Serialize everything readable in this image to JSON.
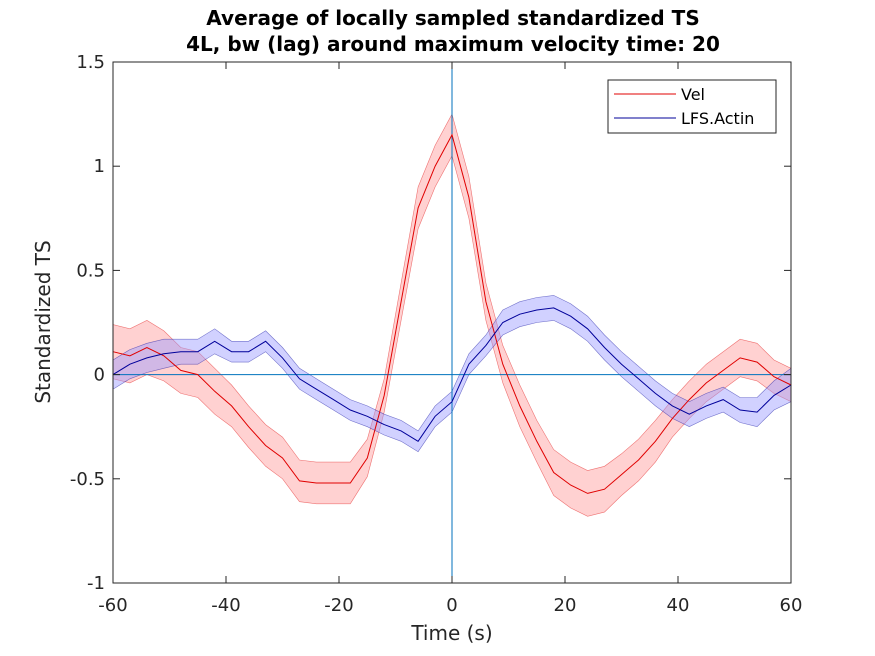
{
  "chart_data": {
    "type": "line",
    "title": "Average of locally sampled standardized TS",
    "subtitle": "4L, bw (lag) around maximum velocity time: 20",
    "xlabel": "Time (s)",
    "ylabel": "Standardized TS",
    "xlim": [
      -60,
      60
    ],
    "ylim": [
      -1,
      1.5
    ],
    "xticks": [
      -60,
      -40,
      -20,
      0,
      20,
      40,
      60
    ],
    "yticks": [
      -1,
      -0.5,
      0,
      0.5,
      1,
      1.5
    ],
    "xtick_labels": [
      "-60",
      "-40",
      "-20",
      "0",
      "20",
      "40",
      "60"
    ],
    "ytick_labels": [
      "-1",
      "-0.5",
      "0",
      "0.5",
      "1",
      "1.5"
    ],
    "grid": false,
    "legend_position": "top-right",
    "reference_lines": {
      "x": 0,
      "y": 0,
      "color": "#0072BD"
    },
    "x": [
      -60,
      -57,
      -54,
      -51,
      -48,
      -45,
      -42,
      -39,
      -36,
      -33,
      -30,
      -27,
      -24,
      -21,
      -18,
      -15,
      -12,
      -9,
      -6,
      -3,
      0,
      3,
      6,
      9,
      12,
      15,
      18,
      21,
      24,
      27,
      30,
      33,
      36,
      39,
      42,
      45,
      48,
      51,
      54,
      57,
      60
    ],
    "series": [
      {
        "name": "Vel",
        "color": "#e00000",
        "band_color": "#ff9999",
        "values": [
          0.11,
          0.09,
          0.13,
          0.09,
          0.02,
          0.0,
          -0.08,
          -0.15,
          -0.25,
          -0.34,
          -0.4,
          -0.51,
          -0.52,
          -0.52,
          -0.52,
          -0.4,
          -0.1,
          0.35,
          0.8,
          1.0,
          1.15,
          0.85,
          0.35,
          0.05,
          -0.15,
          -0.32,
          -0.47,
          -0.53,
          -0.57,
          -0.55,
          -0.48,
          -0.41,
          -0.32,
          -0.21,
          -0.12,
          -0.04,
          0.02,
          0.08,
          0.06,
          -0.01,
          -0.05
        ],
        "band_half_width": [
          0.13,
          0.13,
          0.13,
          0.12,
          0.11,
          0.11,
          0.11,
          0.1,
          0.1,
          0.1,
          0.1,
          0.1,
          0.1,
          0.1,
          0.1,
          0.09,
          0.08,
          0.09,
          0.1,
          0.1,
          0.1,
          0.1,
          0.09,
          0.09,
          0.1,
          0.1,
          0.11,
          0.11,
          0.11,
          0.11,
          0.1,
          0.1,
          0.1,
          0.09,
          0.09,
          0.09,
          0.09,
          0.09,
          0.09,
          0.08,
          0.08
        ]
      },
      {
        "name": "LFS.Actin",
        "color": "#00009a",
        "band_color": "#9999ff",
        "values": [
          0.0,
          0.05,
          0.08,
          0.1,
          0.11,
          0.11,
          0.16,
          0.11,
          0.11,
          0.16,
          0.08,
          -0.02,
          -0.07,
          -0.12,
          -0.17,
          -0.2,
          -0.24,
          -0.27,
          -0.32,
          -0.2,
          -0.13,
          0.05,
          0.14,
          0.25,
          0.29,
          0.31,
          0.32,
          0.28,
          0.22,
          0.13,
          0.05,
          -0.02,
          -0.09,
          -0.15,
          -0.19,
          -0.15,
          -0.12,
          -0.17,
          -0.18,
          -0.1,
          -0.05
        ],
        "band_half_width": [
          0.07,
          0.07,
          0.07,
          0.07,
          0.06,
          0.06,
          0.06,
          0.05,
          0.05,
          0.05,
          0.05,
          0.05,
          0.05,
          0.05,
          0.05,
          0.05,
          0.05,
          0.05,
          0.05,
          0.05,
          0.05,
          0.05,
          0.05,
          0.06,
          0.06,
          0.06,
          0.06,
          0.06,
          0.06,
          0.06,
          0.06,
          0.06,
          0.06,
          0.06,
          0.06,
          0.06,
          0.06,
          0.06,
          0.07,
          0.07,
          0.08
        ]
      }
    ]
  }
}
